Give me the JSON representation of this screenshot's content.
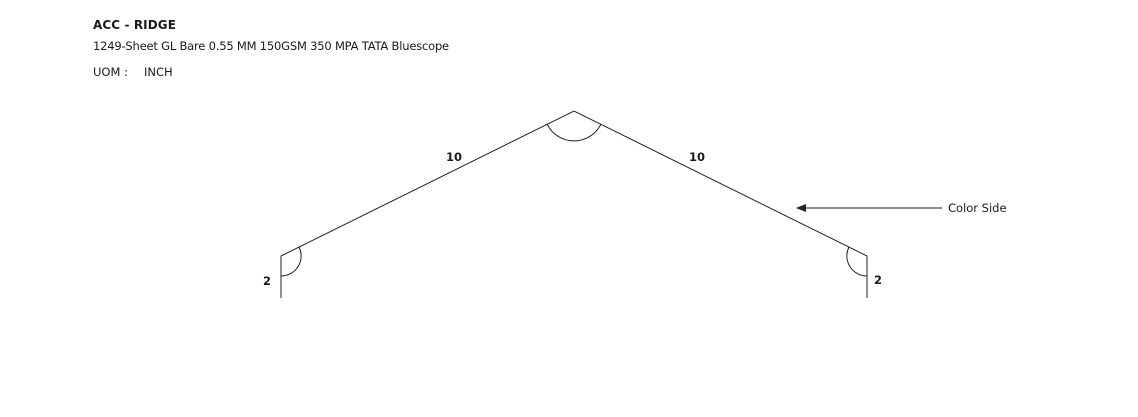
{
  "header": {
    "title": "ACC - RIDGE",
    "subtitle": "1249-Sheet GL Bare 0.55 MM 150GSM 350 MPA TATA Bluescope",
    "uom_label": "UOM :",
    "uom_value": "INCH"
  },
  "drawing": {
    "dimensions": {
      "left_slope": "10",
      "right_slope": "10",
      "left_hem": "2",
      "right_hem": "2"
    },
    "annotation": "Color Side",
    "stroke_color": "#222222"
  }
}
